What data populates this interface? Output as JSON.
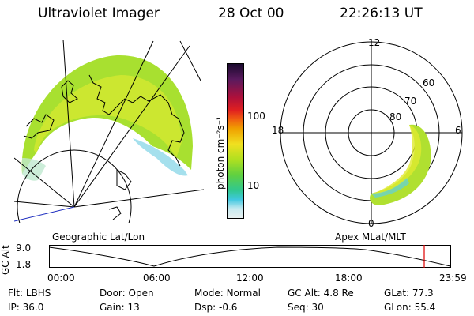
{
  "header": {
    "title": "Ultraviolet Imager",
    "date": "28 Oct 00",
    "time": "22:26:13 UT"
  },
  "colorbar": {
    "unit_label": "photon cm⁻²s⁻¹",
    "ticks": [
      "100",
      "10"
    ],
    "colors": [
      "#1a0a2e",
      "#5a1a5e",
      "#b0103a",
      "#e02020",
      "#f06010",
      "#f0a000",
      "#f0e020",
      "#b0e020",
      "#60d040",
      "#30c890",
      "#40c8e0",
      "#c8eaf0",
      "#e8f0f0"
    ]
  },
  "geo_map": {
    "label": "Geographic Lat/Lon"
  },
  "polar_plot": {
    "label": "Apex MLat/MLT",
    "mlt_labels": {
      "top": "12",
      "bottom": "0",
      "left": "18",
      "right": "6"
    },
    "lat_labels": [
      "60",
      "70",
      "80"
    ]
  },
  "altitude_track": {
    "axis_label": "GC Alt",
    "y_ticks": [
      "9.0",
      "1.8"
    ],
    "time_ticks": [
      "00:00",
      "06:00",
      "12:00",
      "18:00",
      "23:59"
    ],
    "marker_color": "#e00000"
  },
  "status": {
    "row1": [
      {
        "label": "Flt:",
        "value": "LBHS"
      },
      {
        "label": "Door:",
        "value": "Open"
      },
      {
        "label": "Mode:",
        "value": "Normal"
      },
      {
        "label": "GC Alt:",
        "value": "4.8 Re"
      },
      {
        "label": "GLat:",
        "value": "77.3"
      }
    ],
    "row2": [
      {
        "label": "IP:",
        "value": "36.0"
      },
      {
        "label": "Gain:",
        "value": "13"
      },
      {
        "label": "Dsp:",
        "value": "-0.6"
      },
      {
        "label": "Seq:",
        "value": "30"
      },
      {
        "label": "GLon:",
        "value": "55.4"
      }
    ]
  }
}
